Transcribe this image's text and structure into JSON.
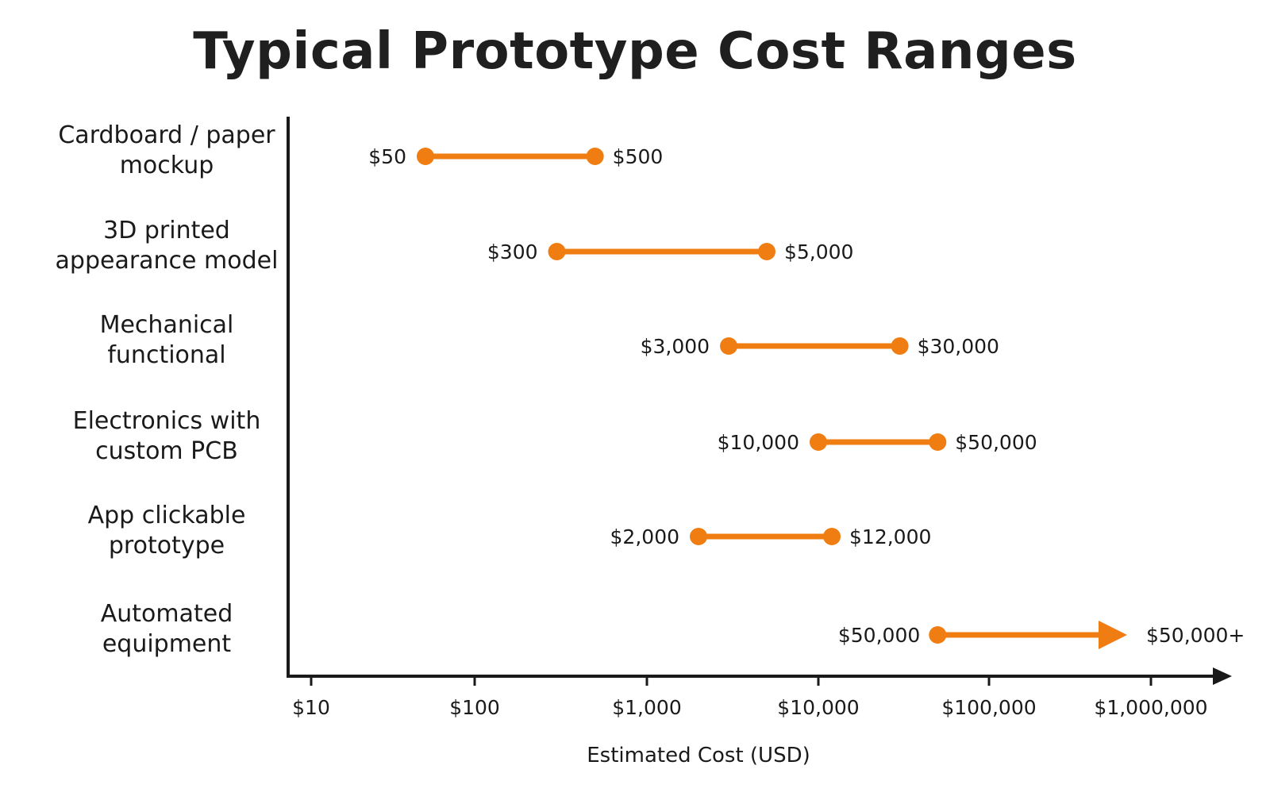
{
  "chart_data": {
    "type": "range",
    "title": "Typical Prototype Cost Ranges",
    "xlabel": "Estimated Cost (USD)",
    "ylabel": "",
    "x_scale": "log",
    "xlim": [
      10,
      1000000
    ],
    "grid": false,
    "accent_color": "#f07d12",
    "tick_values": [
      10,
      100,
      1000,
      10000,
      100000,
      1000000
    ],
    "tick_labels": [
      "$10",
      "$100",
      "$1,000",
      "$10,000",
      "$100,000",
      "$1,000,000"
    ],
    "series": [
      {
        "category": [
          "Cardboard / paper",
          "mockup"
        ],
        "low": 50,
        "high": 500,
        "low_label": "$50",
        "high_label": "$500",
        "open_ended": false
      },
      {
        "category": [
          "3D printed",
          "appearance model"
        ],
        "low": 300,
        "high": 5000,
        "low_label": "$300",
        "high_label": "$5,000",
        "open_ended": false
      },
      {
        "category": [
          "Mechanical",
          "functional"
        ],
        "low": 3000,
        "high": 30000,
        "low_label": "$3,000",
        "high_label": "$30,000",
        "open_ended": false
      },
      {
        "category": [
          "Electronics with",
          "custom PCB"
        ],
        "low": 10000,
        "high": 50000,
        "low_label": "$10,000",
        "high_label": "$50,000",
        "open_ended": false
      },
      {
        "category": [
          "App clickable",
          "prototype"
        ],
        "low": 2000,
        "high": 12000,
        "low_label": "$2,000",
        "high_label": "$12,000",
        "open_ended": false
      },
      {
        "category": [
          "Automated",
          "equipment"
        ],
        "low": 50000,
        "high": null,
        "low_label": "$50,000",
        "high_label": "$50,000+",
        "open_ended": true
      }
    ]
  }
}
